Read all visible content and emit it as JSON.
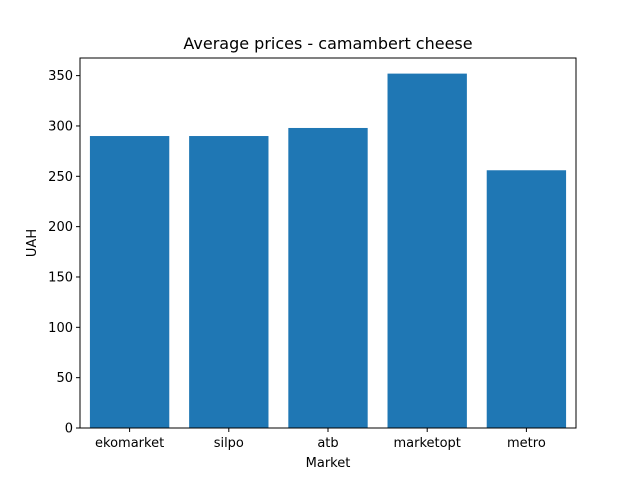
{
  "chart_data": {
    "type": "bar",
    "title": "Average prices - camambert cheese",
    "xlabel": "Market",
    "ylabel": "UAH",
    "categories": [
      "ekomarket",
      "silpo",
      "atb",
      "marketopt",
      "metro"
    ],
    "values": [
      290,
      290,
      298,
      352,
      256
    ],
    "ylim": [
      0,
      367.5
    ],
    "yticks": [
      0,
      50,
      100,
      150,
      200,
      250,
      300,
      350
    ],
    "ytick_labels": [
      "0",
      "50",
      "100",
      "150",
      "200",
      "250",
      "300",
      "350"
    ],
    "bar_color": "#1f77b4",
    "grid": false,
    "legend": "none"
  }
}
